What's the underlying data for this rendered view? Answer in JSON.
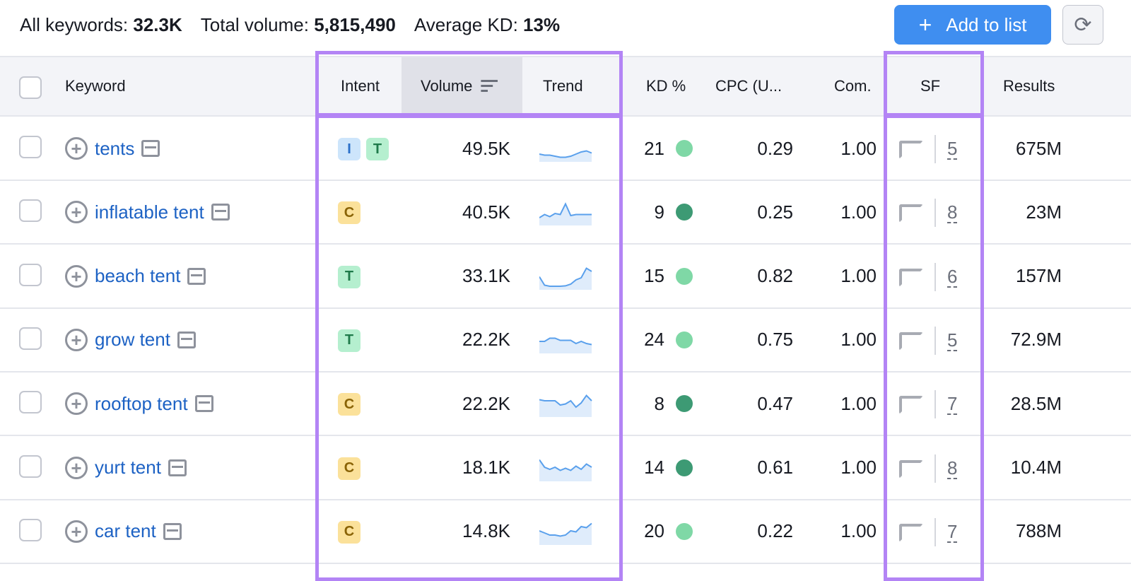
{
  "summary": {
    "all_keywords_label": "All keywords:",
    "all_keywords": "32.3K",
    "total_volume_label": "Total volume:",
    "total_volume": "5,815,490",
    "avg_kd_label": "Average KD:",
    "avg_kd": "13%"
  },
  "toolbar": {
    "add_label": "Add to list",
    "add_icon": "plus-icon",
    "refresh_icon": "refresh-icon"
  },
  "columns": {
    "keyword": "Keyword",
    "intent": "Intent",
    "volume": "Volume",
    "trend": "Trend",
    "kd": "KD %",
    "cpc": "CPC (U...",
    "com": "Com.",
    "sf": "SF",
    "results": "Results"
  },
  "colors": {
    "accent": "#3f8ef0",
    "highlight": "#b384f5",
    "kd_easy": "#7fd8a6",
    "kd_very_easy": "#3d9a74",
    "link": "#1d62c4"
  },
  "rows": [
    {
      "keyword": "tents",
      "intent": [
        "I",
        "T"
      ],
      "volume": "49.5K",
      "trend": [
        0.3,
        0.25,
        0.25,
        0.2,
        0.15,
        0.15,
        0.2,
        0.3,
        0.4,
        0.45,
        0.35
      ],
      "kd": "21",
      "kd_level": "easy",
      "cpc": "0.29",
      "com": "1.00",
      "sf": "5",
      "results": "675M"
    },
    {
      "keyword": "inflatable tent",
      "intent": [
        "C"
      ],
      "volume": "40.5K",
      "trend": [
        0.3,
        0.45,
        0.35,
        0.5,
        0.45,
        0.95,
        0.4,
        0.45,
        0.45,
        0.45,
        0.45
      ],
      "kd": "9",
      "kd_level": "very-easy",
      "cpc": "0.25",
      "com": "1.00",
      "sf": "8",
      "results": "23M"
    },
    {
      "keyword": "beach tent",
      "intent": [
        "T"
      ],
      "volume": "33.1K",
      "trend": [
        0.55,
        0.15,
        0.1,
        0.1,
        0.1,
        0.12,
        0.2,
        0.4,
        0.5,
        0.95,
        0.8
      ],
      "kd": "15",
      "kd_level": "easy",
      "cpc": "0.82",
      "com": "1.00",
      "sf": "6",
      "results": "157M"
    },
    {
      "keyword": "grow tent",
      "intent": [
        "T"
      ],
      "volume": "22.2K",
      "trend": [
        0.5,
        0.5,
        0.65,
        0.65,
        0.55,
        0.55,
        0.55,
        0.4,
        0.5,
        0.4,
        0.35
      ],
      "kd": "24",
      "kd_level": "easy",
      "cpc": "0.75",
      "com": "1.00",
      "sf": "5",
      "results": "72.9M"
    },
    {
      "keyword": "rooftop tent",
      "intent": [
        "C"
      ],
      "volume": "22.2K",
      "trend": [
        0.75,
        0.7,
        0.7,
        0.7,
        0.5,
        0.55,
        0.7,
        0.4,
        0.6,
        0.95,
        0.7
      ],
      "kd": "8",
      "kd_level": "very-easy",
      "cpc": "0.47",
      "com": "1.00",
      "sf": "7",
      "results": "28.5M"
    },
    {
      "keyword": "yurt tent",
      "intent": [
        "C"
      ],
      "volume": "18.1K",
      "trend": [
        0.95,
        0.6,
        0.5,
        0.6,
        0.45,
        0.55,
        0.45,
        0.65,
        0.5,
        0.75,
        0.6
      ],
      "kd": "14",
      "kd_level": "very-easy",
      "cpc": "0.61",
      "com": "1.00",
      "sf": "8",
      "results": "10.4M"
    },
    {
      "keyword": "car tent",
      "intent": [
        "C"
      ],
      "volume": "14.8K",
      "trend": [
        0.6,
        0.5,
        0.4,
        0.4,
        0.35,
        0.4,
        0.6,
        0.55,
        0.8,
        0.75,
        0.95
      ],
      "kd": "20",
      "kd_level": "easy",
      "cpc": "0.22",
      "com": "1.00",
      "sf": "7",
      "results": "788M"
    }
  ]
}
